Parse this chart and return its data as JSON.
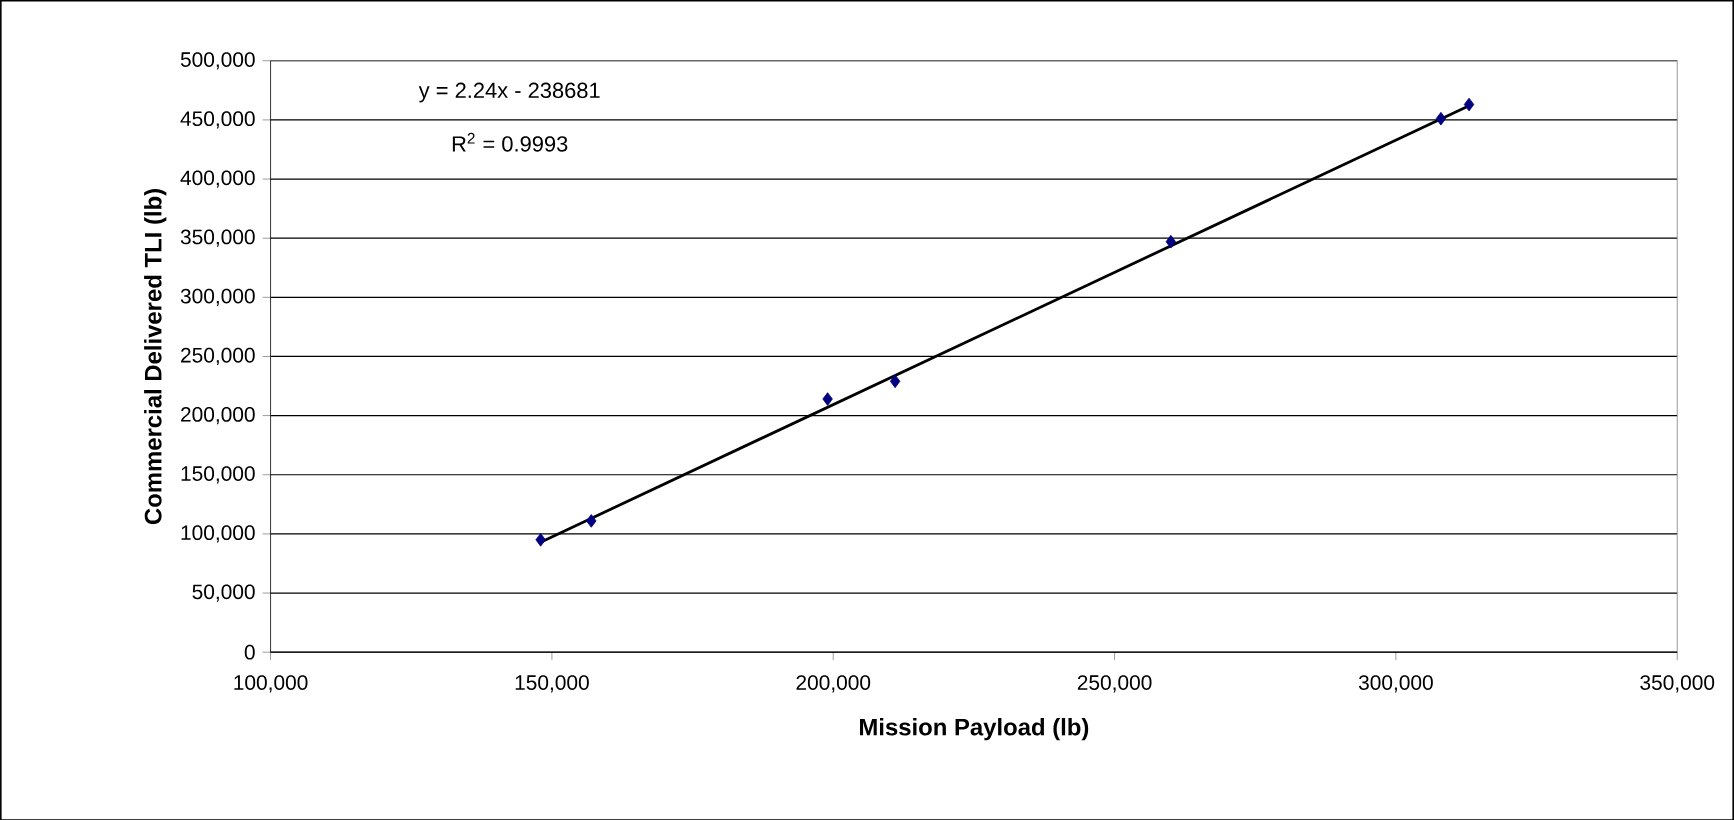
{
  "chart_data": {
    "type": "scatter",
    "xlabel": "Mission Payload (lb)",
    "ylabel": "Commercial Delivered TLI (lb)",
    "xlim": [
      100000,
      350000
    ],
    "ylim": [
      0,
      500000
    ],
    "xticks": [
      {
        "value": 100000,
        "label": "100,000"
      },
      {
        "value": 150000,
        "label": "150,000"
      },
      {
        "value": 200000,
        "label": "200,000"
      },
      {
        "value": 250000,
        "label": "250,000"
      },
      {
        "value": 300000,
        "label": "300,000"
      },
      {
        "value": 350000,
        "label": "350,000"
      }
    ],
    "yticks": [
      0,
      {
        "value": 50000,
        "label": "50,000"
      },
      {
        "value": 100000,
        "label": "100,000"
      },
      {
        "value": 150000,
        "label": "150,000"
      },
      {
        "value": 200000,
        "label": "200,000"
      },
      {
        "value": 250000,
        "label": "250,000"
      },
      {
        "value": 300000,
        "label": "300,000"
      },
      {
        "value": 350000,
        "label": "350,000"
      },
      {
        "value": 400000,
        "label": "400,000"
      },
      {
        "value": 450000,
        "label": "450,000"
      },
      {
        "value": 500000,
        "label": "500,000"
      }
    ],
    "grid": "y",
    "series": [
      {
        "color": "#000080",
        "marker": "diamond",
        "x": [
          148000,
          157000,
          199000,
          211000,
          260000,
          308000,
          313000
        ],
        "values": [
          95000,
          111000,
          214000,
          229000,
          347000,
          451000,
          463000
        ]
      },
      {
        "type": "line",
        "color": "#000000",
        "line_style": "solid",
        "x": [
          148000,
          313000
        ],
        "values": [
          93000,
          462000
        ]
      }
    ],
    "annotations": [
      "y = 2.24x - 238681",
      "R$^{2}$ = 0.9993"
    ]
  }
}
